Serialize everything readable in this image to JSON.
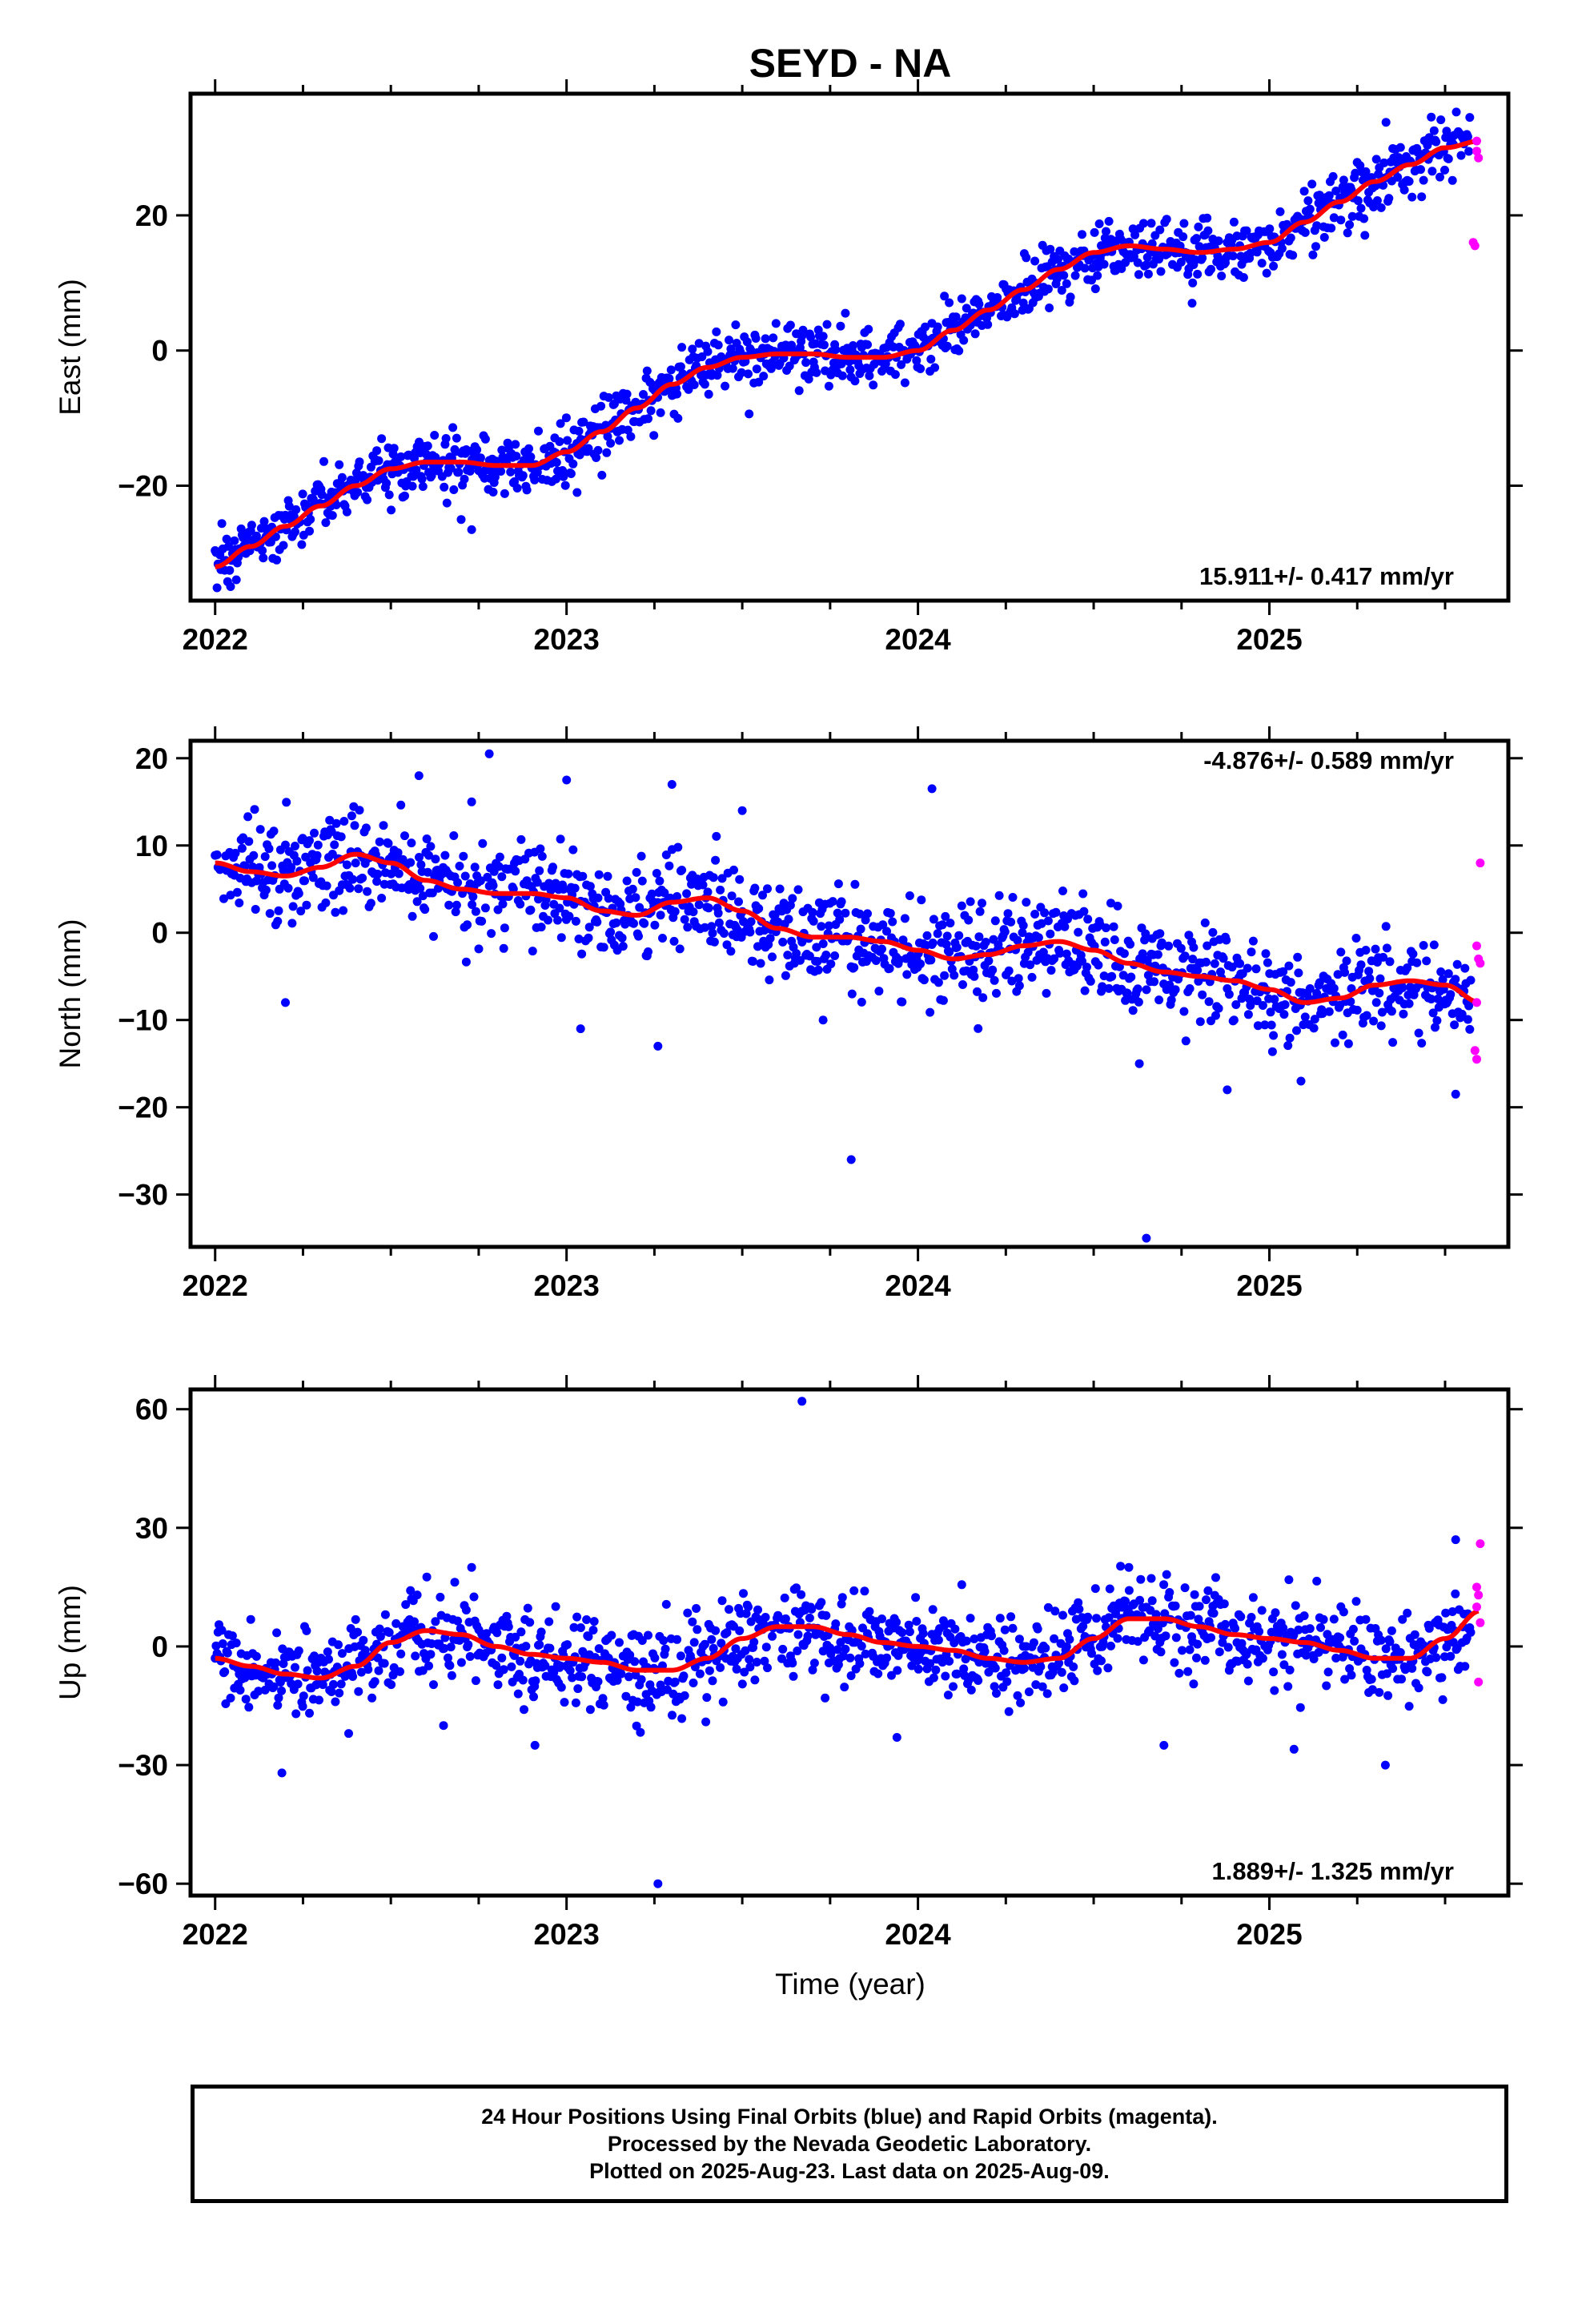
{
  "chart_data": {
    "type": "scatter",
    "title": "SEYD - NA",
    "xlabel": "Time (year)",
    "xlim": [
      2021.93,
      2025.68
    ],
    "x_ticks": [
      2022,
      2023,
      2024,
      2025
    ],
    "x_tick_labels": [
      "2022",
      "2023",
      "2024",
      "2025"
    ],
    "grid": false,
    "legend": "none",
    "colors": {
      "final": "#0000ff",
      "rapid": "#ff00ff",
      "model": "#ff0000",
      "axes": "#000000"
    },
    "panels": [
      {
        "name": "east",
        "ylabel": "East (mm)",
        "ylim": [
          -37,
          38
        ],
        "yticks": [
          -20,
          0,
          20
        ],
        "ytick_labels": [
          "−20",
          "0",
          "20"
        ],
        "rate_label": "15.911+/- 0.417 mm/yr",
        "rate_position": "bottom-right",
        "model_curve": {
          "x": [
            2022.0,
            2022.1,
            2022.2,
            2022.3,
            2022.4,
            2022.5,
            2022.6,
            2022.7,
            2022.8,
            2022.9,
            2023.0,
            2023.1,
            2023.2,
            2023.3,
            2023.4,
            2023.5,
            2023.6,
            2023.7,
            2023.8,
            2023.9,
            2024.0,
            2024.1,
            2024.2,
            2024.3,
            2024.4,
            2024.5,
            2024.6,
            2024.7,
            2024.8,
            2024.9,
            2025.0,
            2025.1,
            2025.2,
            2025.3,
            2025.4,
            2025.5,
            2025.6
          ],
          "y": [
            -32,
            -29,
            -26,
            -23,
            -20,
            -17.5,
            -16.5,
            -16.5,
            -17,
            -17,
            -15,
            -12,
            -8.5,
            -5,
            -2.5,
            -1,
            -0.5,
            -0.5,
            -1,
            -1,
            0,
            3,
            6,
            9,
            12,
            14.5,
            15.5,
            15,
            14.5,
            15,
            16,
            19,
            22,
            25,
            27.5,
            30,
            31
          ]
        },
        "outliers_final": [
          [
            2022.73,
            -26.5
          ],
          [
            2022.7,
            -25
          ],
          [
            2022.97,
            -19
          ],
          [
            2023.03,
            -21
          ],
          [
            2024.78,
            7
          ]
        ],
        "rapid_points": [
          [
            2025.59,
            31
          ],
          [
            2025.59,
            29.5
          ],
          [
            2025.595,
            28.5
          ],
          [
            2025.58,
            16
          ],
          [
            2025.585,
            15.5
          ]
        ],
        "scatter_sigma": 2.2
      },
      {
        "name": "north",
        "ylabel": "North (mm)",
        "ylim": [
          -36,
          22
        ],
        "yticks": [
          -30,
          -20,
          -10,
          0,
          10,
          20
        ],
        "ytick_labels": [
          "−30",
          "−20",
          "−10",
          "0",
          "10",
          "20"
        ],
        "rate_label": "-4.876+/- 0.589 mm/yr",
        "rate_position": "top-right",
        "model_curve": {
          "x": [
            2022.0,
            2022.1,
            2022.2,
            2022.3,
            2022.4,
            2022.5,
            2022.6,
            2022.7,
            2022.8,
            2022.9,
            2023.0,
            2023.1,
            2023.2,
            2023.3,
            2023.4,
            2023.5,
            2023.6,
            2023.7,
            2023.8,
            2023.9,
            2024.0,
            2024.1,
            2024.2,
            2024.3,
            2024.4,
            2024.5,
            2024.6,
            2024.7,
            2024.8,
            2024.9,
            2025.0,
            2025.1,
            2025.2,
            2025.3,
            2025.4,
            2025.5,
            2025.6
          ],
          "y": [
            8,
            7,
            6.5,
            7.5,
            9,
            8,
            6,
            5,
            4.5,
            4.5,
            4,
            2.5,
            2,
            3.5,
            4,
            2.5,
            0.5,
            -0.5,
            -0.5,
            -1,
            -2,
            -3,
            -2.5,
            -1.5,
            -1,
            -2,
            -3.5,
            -4.5,
            -5,
            -5.5,
            -6.5,
            -8,
            -7.5,
            -6,
            -5.5,
            -6,
            -8
          ]
        },
        "outliers_final": [
          [
            2022.58,
            18
          ],
          [
            2022.78,
            20.5
          ],
          [
            2022.73,
            15
          ],
          [
            2023.0,
            17.5
          ],
          [
            2023.3,
            17
          ],
          [
            2023.5,
            14
          ],
          [
            2023.04,
            -11
          ],
          [
            2023.26,
            -13
          ],
          [
            2023.73,
            -10
          ],
          [
            2023.81,
            -26
          ],
          [
            2024.04,
            16.5
          ],
          [
            2024.65,
            -35
          ],
          [
            2024.63,
            -15
          ],
          [
            2024.88,
            -18
          ],
          [
            2025.09,
            -17
          ],
          [
            2025.53,
            -18.5
          ],
          [
            2022.2,
            -8
          ]
        ],
        "rapid_points": [
          [
            2025.6,
            8
          ],
          [
            2025.59,
            -1.5
          ],
          [
            2025.595,
            -3
          ],
          [
            2025.6,
            -3.5
          ],
          [
            2025.59,
            -8
          ],
          [
            2025.585,
            -13.5
          ],
          [
            2025.59,
            -14.5
          ]
        ],
        "scatter_sigma": 2.8
      },
      {
        "name": "up",
        "ylabel": "Up (mm)",
        "ylim": [
          -63,
          65
        ],
        "yticks": [
          -60,
          -30,
          0,
          30,
          60
        ],
        "ytick_labels": [
          "−60",
          "−30",
          "0",
          "30",
          "60"
        ],
        "rate_label": "1.889+/- 1.325 mm/yr",
        "rate_position": "bottom-right",
        "model_curve": {
          "x": [
            2022.0,
            2022.1,
            2022.2,
            2022.3,
            2022.4,
            2022.5,
            2022.6,
            2022.7,
            2022.8,
            2022.9,
            2023.0,
            2023.1,
            2023.2,
            2023.3,
            2023.4,
            2023.5,
            2023.6,
            2023.7,
            2023.8,
            2023.9,
            2024.0,
            2024.1,
            2024.2,
            2024.3,
            2024.4,
            2024.5,
            2024.6,
            2024.7,
            2024.8,
            2024.9,
            2025.0,
            2025.1,
            2025.2,
            2025.3,
            2025.4,
            2025.5,
            2025.6
          ],
          "y": [
            -3,
            -5,
            -7,
            -8,
            -5,
            1,
            4,
            3,
            0,
            -2,
            -3,
            -4,
            -6,
            -6,
            -3,
            2,
            5,
            5,
            3,
            1,
            0,
            -1,
            -3,
            -4,
            -3,
            2,
            7,
            7,
            5,
            3,
            2,
            1,
            -1,
            -3,
            -3,
            2,
            9
          ]
        },
        "outliers_final": [
          [
            2023.67,
            62
          ],
          [
            2023.26,
            -60
          ],
          [
            2022.19,
            -32
          ],
          [
            2025.33,
            -30
          ],
          [
            2022.65,
            -20
          ],
          [
            2022.38,
            -22
          ],
          [
            2022.73,
            20
          ],
          [
            2024.6,
            20
          ],
          [
            2024.7,
            -25
          ],
          [
            2025.07,
            -26
          ],
          [
            2025.53,
            27
          ],
          [
            2023.94,
            -23
          ],
          [
            2022.91,
            -25
          ]
        ],
        "rapid_points": [
          [
            2025.6,
            26
          ],
          [
            2025.59,
            15
          ],
          [
            2025.595,
            13
          ],
          [
            2025.59,
            10
          ],
          [
            2025.6,
            6
          ],
          [
            2025.595,
            -9
          ]
        ],
        "scatter_sigma": 5.5
      }
    ]
  },
  "footer": {
    "line1": "24 Hour Positions Using Final Orbits (blue) and Rapid Orbits (magenta).",
    "line2": "Processed by the Nevada Geodetic Laboratory.",
    "line3": "Plotted on 2025-Aug-23. Last data on 2025-Aug-09."
  }
}
